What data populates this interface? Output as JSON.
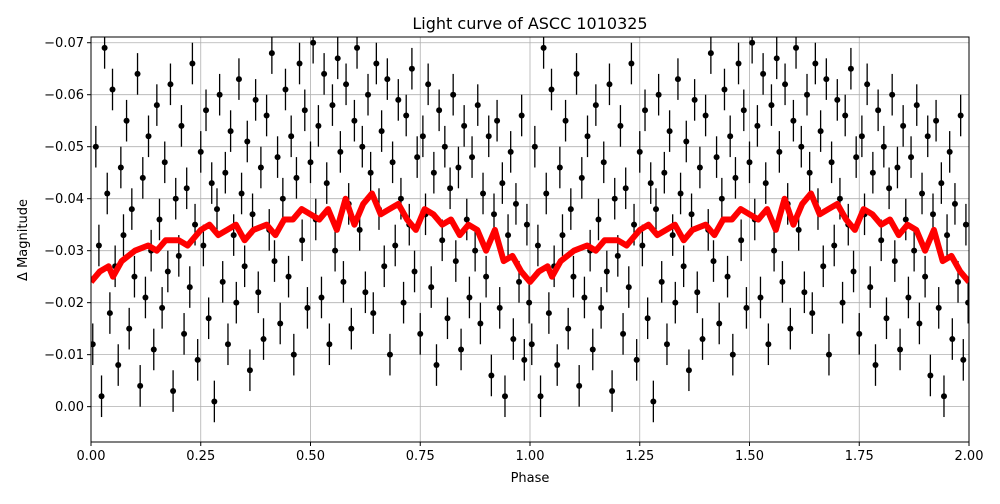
{
  "chart_data": {
    "type": "scatter",
    "title": "Light curve of ASCC 1010325",
    "xlabel": "Phase",
    "ylabel": "Δ Magnitude",
    "xlim": [
      0,
      2
    ],
    "ylim": [
      0.0068,
      -0.0711
    ],
    "y_inverted": true,
    "grid": true,
    "x_ticks": [
      "0.00",
      "0.25",
      "0.50",
      "0.75",
      "1.00",
      "1.25",
      "1.50",
      "1.75",
      "2.00"
    ],
    "x_tick_values": [
      0,
      0.25,
      0.5,
      0.75,
      1,
      1.25,
      1.5,
      1.75,
      2
    ],
    "y_ticks": [
      "−0.07",
      "−0.06",
      "−0.05",
      "−0.04",
      "−0.03",
      "−0.02",
      "−0.01",
      "0.00"
    ],
    "y_tick_values": [
      -0.07,
      -0.06,
      -0.05,
      -0.04,
      -0.03,
      -0.02,
      -0.01,
      0
    ],
    "series": [
      {
        "kind": "errorbar-points",
        "color": "#000000",
        "errorbar": 0.004,
        "repeat_period": 1,
        "points": [
          [
            0.004,
            -0.012
          ],
          [
            0.011,
            -0.05
          ],
          [
            0.018,
            -0.031
          ],
          [
            0.024,
            -0.002
          ],
          [
            0.031,
            -0.069
          ],
          [
            0.037,
            -0.041
          ],
          [
            0.043,
            -0.018
          ],
          [
            0.049,
            -0.061
          ],
          [
            0.055,
            -0.027
          ],
          [
            0.062,
            -0.008
          ],
          [
            0.068,
            -0.046
          ],
          [
            0.074,
            -0.033
          ],
          [
            0.081,
            -0.055
          ],
          [
            0.087,
            -0.015
          ],
          [
            0.093,
            -0.038
          ],
          [
            0.099,
            -0.025
          ],
          [
            0.106,
            -0.064
          ],
          [
            0.112,
            -0.004
          ],
          [
            0.118,
            -0.044
          ],
          [
            0.124,
            -0.021
          ],
          [
            0.131,
            -0.052
          ],
          [
            0.137,
            -0.03
          ],
          [
            0.143,
            -0.011
          ],
          [
            0.15,
            -0.058
          ],
          [
            0.156,
            -0.036
          ],
          [
            0.162,
            -0.019
          ],
          [
            0.168,
            -0.047
          ],
          [
            0.175,
            -0.026
          ],
          [
            0.181,
            -0.062
          ],
          [
            0.187,
            -0.003
          ],
          [
            0.193,
            -0.04
          ],
          [
            0.2,
            -0.029
          ],
          [
            0.206,
            -0.054
          ],
          [
            0.212,
            -0.014
          ],
          [
            0.218,
            -0.042
          ],
          [
            0.225,
            -0.023
          ],
          [
            0.231,
            -0.066
          ],
          [
            0.237,
            -0.035
          ],
          [
            0.243,
            -0.009
          ],
          [
            0.25,
            -0.049
          ],
          [
            0.256,
            -0.031
          ],
          [
            0.262,
            -0.057
          ],
          [
            0.268,
            -0.017
          ],
          [
            0.275,
            -0.043
          ],
          [
            0.281,
            -0.001
          ],
          [
            0.287,
            -0.038
          ],
          [
            0.293,
            -0.06
          ],
          [
            0.3,
            -0.024
          ],
          [
            0.306,
            -0.045
          ],
          [
            0.312,
            -0.012
          ],
          [
            0.318,
            -0.053
          ],
          [
            0.325,
            -0.033
          ],
          [
            0.331,
            -0.02
          ],
          [
            0.337,
            -0.063
          ],
          [
            0.343,
            -0.041
          ],
          [
            0.35,
            -0.027
          ],
          [
            0.356,
            -0.051
          ],
          [
            0.362,
            -0.007
          ],
          [
            0.368,
            -0.037
          ],
          [
            0.375,
            -0.059
          ],
          [
            0.381,
            -0.022
          ],
          [
            0.387,
            -0.046
          ],
          [
            0.393,
            -0.013
          ],
          [
            0.4,
            -0.056
          ],
          [
            0.406,
            -0.034
          ],
          [
            0.412,
            -0.068
          ],
          [
            0.418,
            -0.028
          ],
          [
            0.425,
            -0.048
          ],
          [
            0.431,
            -0.016
          ],
          [
            0.437,
            -0.04
          ],
          [
            0.443,
            -0.061
          ],
          [
            0.45,
            -0.025
          ],
          [
            0.456,
            -0.052
          ],
          [
            0.462,
            -0.01
          ],
          [
            0.468,
            -0.044
          ],
          [
            0.475,
            -0.066
          ],
          [
            0.481,
            -0.032
          ],
          [
            0.487,
            -0.057
          ],
          [
            0.493,
            -0.019
          ],
          [
            0.5,
            -0.047
          ],
          [
            0.506,
            -0.07
          ],
          [
            0.512,
            -0.036
          ],
          [
            0.518,
            -0.054
          ],
          [
            0.525,
            -0.021
          ],
          [
            0.531,
            -0.064
          ],
          [
            0.537,
            -0.043
          ],
          [
            0.543,
            -0.012
          ],
          [
            0.55,
            -0.058
          ],
          [
            0.556,
            -0.03
          ],
          [
            0.562,
            -0.067
          ],
          [
            0.568,
            -0.049
          ],
          [
            0.575,
            -0.024
          ],
          [
            0.581,
            -0.062
          ],
          [
            0.587,
            -0.039
          ],
          [
            0.593,
            -0.015
          ],
          [
            0.6,
            -0.055
          ],
          [
            0.606,
            -0.069
          ],
          [
            0.612,
            -0.034
          ],
          [
            0.618,
            -0.05
          ],
          [
            0.625,
            -0.022
          ],
          [
            0.631,
            -0.06
          ],
          [
            0.637,
            -0.045
          ],
          [
            0.643,
            -0.018
          ],
          [
            0.65,
            -0.066
          ],
          [
            0.656,
            -0.038
          ],
          [
            0.662,
            -0.053
          ],
          [
            0.668,
            -0.027
          ],
          [
            0.675,
            -0.063
          ],
          [
            0.681,
            -0.01
          ],
          [
            0.687,
            -0.047
          ],
          [
            0.693,
            -0.031
          ],
          [
            0.7,
            -0.059
          ],
          [
            0.706,
            -0.04
          ],
          [
            0.712,
            -0.02
          ],
          [
            0.718,
            -0.056
          ],
          [
            0.725,
            -0.035
          ],
          [
            0.731,
            -0.065
          ],
          [
            0.737,
            -0.026
          ],
          [
            0.743,
            -0.048
          ],
          [
            0.75,
            -0.014
          ],
          [
            0.756,
            -0.052
          ],
          [
            0.762,
            -0.037
          ],
          [
            0.768,
            -0.062
          ],
          [
            0.775,
            -0.023
          ],
          [
            0.781,
            -0.045
          ],
          [
            0.787,
            -0.008
          ],
          [
            0.793,
            -0.057
          ],
          [
            0.8,
            -0.032
          ],
          [
            0.806,
            -0.05
          ],
          [
            0.812,
            -0.017
          ],
          [
            0.818,
            -0.042
          ],
          [
            0.825,
            -0.06
          ],
          [
            0.831,
            -0.028
          ],
          [
            0.837,
            -0.046
          ],
          [
            0.843,
            -0.011
          ],
          [
            0.85,
            -0.054
          ],
          [
            0.856,
            -0.036
          ],
          [
            0.862,
            -0.021
          ],
          [
            0.868,
            -0.048
          ],
          [
            0.875,
            -0.03
          ],
          [
            0.881,
            -0.058
          ],
          [
            0.887,
            -0.016
          ],
          [
            0.893,
            -0.041
          ],
          [
            0.9,
            -0.025
          ],
          [
            0.906,
            -0.052
          ],
          [
            0.912,
            -0.006
          ],
          [
            0.918,
            -0.037
          ],
          [
            0.925,
            -0.055
          ],
          [
            0.931,
            -0.019
          ],
          [
            0.937,
            -0.043
          ],
          [
            0.943,
            -0.002
          ],
          [
            0.95,
            -0.033
          ],
          [
            0.956,
            -0.049
          ],
          [
            0.962,
            -0.013
          ],
          [
            0.968,
            -0.039
          ],
          [
            0.975,
            -0.024
          ],
          [
            0.981,
            -0.056
          ],
          [
            0.987,
            -0.009
          ],
          [
            0.993,
            -0.035
          ],
          [
            0.998,
            -0.02
          ]
        ]
      },
      {
        "kind": "line",
        "color": "#ff0000",
        "repeat_period": 1,
        "x": [
          0.0,
          0.02,
          0.04,
          0.05,
          0.07,
          0.1,
          0.13,
          0.15,
          0.17,
          0.2,
          0.22,
          0.25,
          0.27,
          0.29,
          0.31,
          0.33,
          0.35,
          0.37,
          0.4,
          0.42,
          0.44,
          0.46,
          0.48,
          0.5,
          0.52,
          0.54,
          0.56,
          0.58,
          0.6,
          0.62,
          0.64,
          0.66,
          0.68,
          0.7,
          0.72,
          0.74,
          0.76,
          0.78,
          0.8,
          0.82,
          0.84,
          0.86,
          0.88,
          0.9,
          0.92,
          0.94,
          0.96,
          0.98,
          1.0
        ],
        "y": [
          -0.024,
          -0.026,
          -0.027,
          -0.025,
          -0.028,
          -0.03,
          -0.031,
          -0.03,
          -0.032,
          -0.032,
          -0.031,
          -0.034,
          -0.035,
          -0.033,
          -0.034,
          -0.035,
          -0.032,
          -0.034,
          -0.035,
          -0.033,
          -0.036,
          -0.036,
          -0.038,
          -0.037,
          -0.036,
          -0.038,
          -0.034,
          -0.04,
          -0.035,
          -0.039,
          -0.041,
          -0.037,
          -0.038,
          -0.039,
          -0.036,
          -0.034,
          -0.038,
          -0.037,
          -0.035,
          -0.036,
          -0.033,
          -0.035,
          -0.034,
          -0.03,
          -0.034,
          -0.028,
          -0.029,
          -0.026,
          -0.024
        ]
      }
    ]
  }
}
